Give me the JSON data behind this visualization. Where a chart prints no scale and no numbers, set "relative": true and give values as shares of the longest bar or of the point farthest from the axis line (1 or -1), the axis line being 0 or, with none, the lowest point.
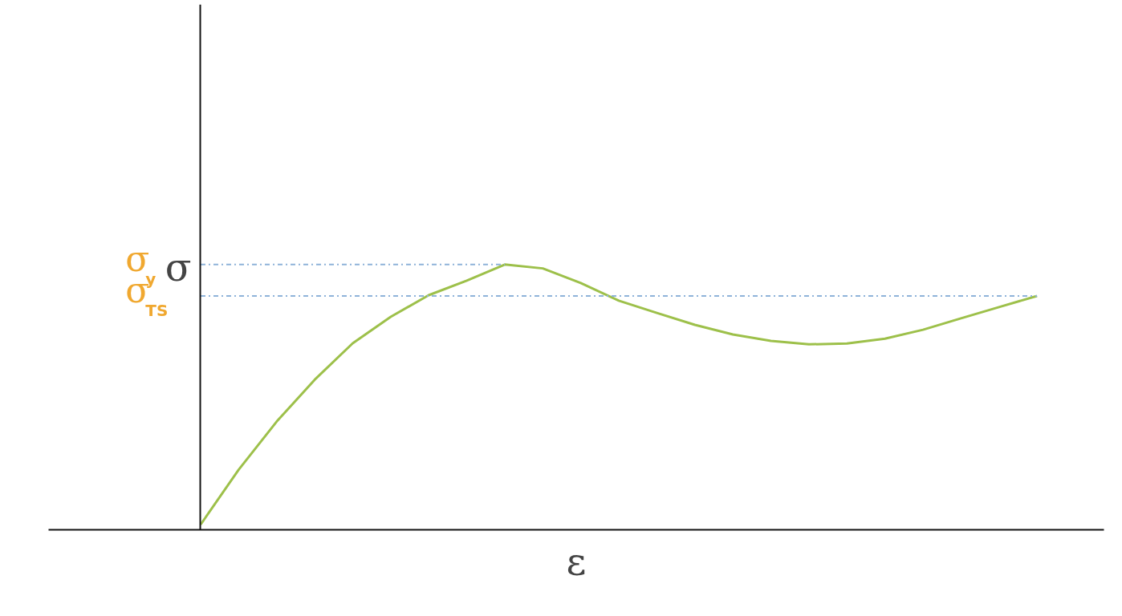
{
  "chart_data": {
    "type": "line",
    "relative": true,
    "xlabel": "ε",
    "ylabel": "σ",
    "categories": [
      null,
      null,
      null,
      null,
      null,
      null,
      null,
      null,
      null,
      null,
      null,
      null,
      null,
      null,
      null,
      null,
      null,
      null,
      null,
      null,
      null,
      null,
      null
    ],
    "series": [
      {
        "color": "#9dc04a",
        "values": [
          0,
          0.211,
          0.396,
          0.557,
          0.697,
          0.799,
          0.882,
          0.938,
          1.0,
          0.985,
          0.929,
          0.861,
          0.814,
          0.768,
          0.731,
          0.706,
          0.693,
          0.696,
          0.715,
          0.749,
          0.793,
          0.836,
          0.879
        ]
      }
    ],
    "ref_lines": [
      {
        "axis": "y",
        "value": 1.0,
        "label": "σ$_{y}$",
        "color": "#8fb3d9",
        "line_style": "dashdot"
      },
      {
        "axis": "y",
        "value": 0.879,
        "label": "σ$_{TS}$",
        "color": "#8fb3d9",
        "line_style": "dashdot"
      }
    ],
    "grid": false
  }
}
